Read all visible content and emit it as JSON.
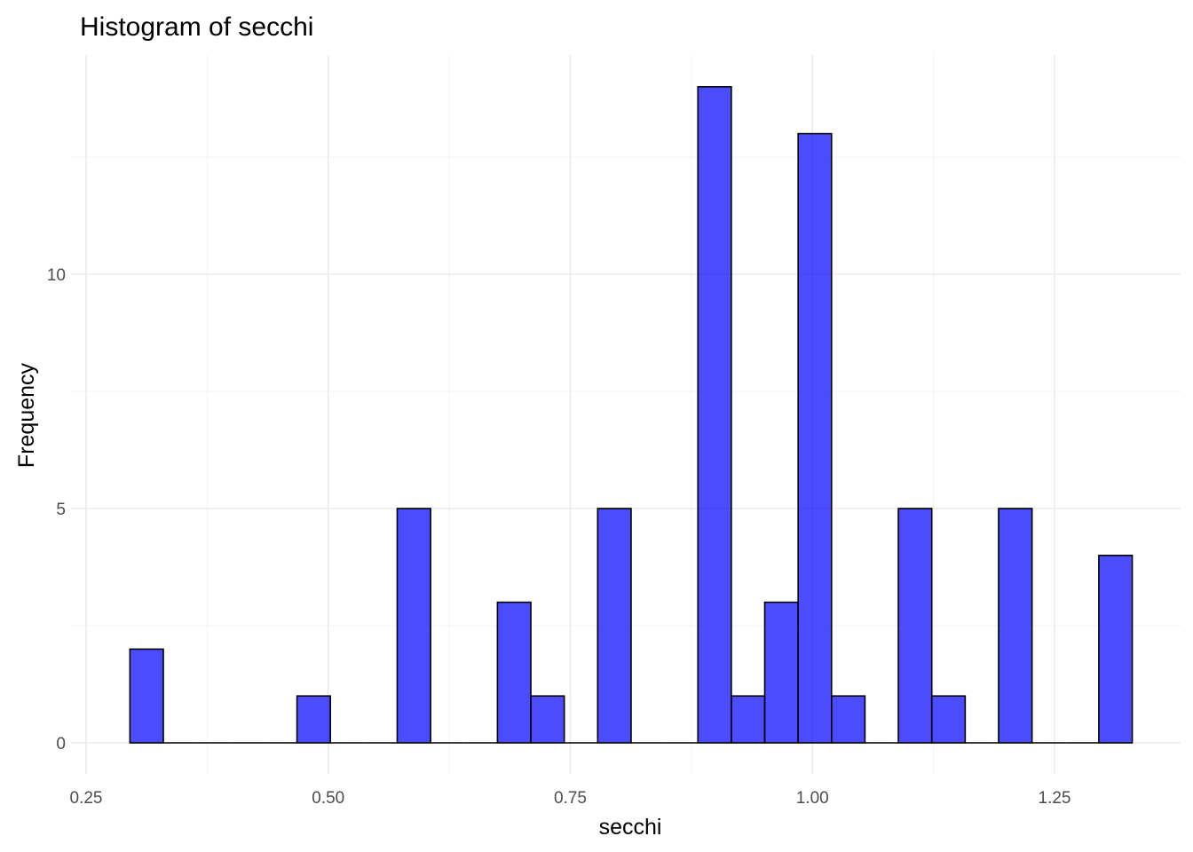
{
  "chart_data": {
    "type": "bar",
    "title": "Histogram of secchi",
    "xlabel": "secchi",
    "ylabel": "Frequency",
    "bar_color": "#0000FF",
    "bar_opacity": 0.7,
    "bar_outline": "#000000",
    "grid": true,
    "xlim": [
      0.25,
      1.35
    ],
    "ylim": [
      0,
      14
    ],
    "x_ticks": [
      0.25,
      0.5,
      0.75,
      1.0,
      1.25
    ],
    "x_tick_labels": [
      "0.25",
      "0.50",
      "0.75",
      "1.00",
      "1.25"
    ],
    "y_ticks": [
      0,
      5,
      10
    ],
    "y_tick_labels": [
      "0",
      "5",
      "10"
    ],
    "bin_width": 0.0345,
    "bin_centers": [
      0.3125,
      0.347,
      0.3815,
      0.416,
      0.4505,
      0.485,
      0.5195,
      0.554,
      0.5885,
      0.623,
      0.6575,
      0.692,
      0.7265,
      0.761,
      0.7955,
      0.83,
      0.8645,
      0.899,
      0.9335,
      0.968,
      1.0025,
      1.037,
      1.0715,
      1.106,
      1.1405,
      1.175,
      1.2095,
      1.244,
      1.2785,
      1.313
    ],
    "counts": [
      2,
      0,
      0,
      0,
      0,
      1,
      0,
      0,
      5,
      0,
      0,
      3,
      1,
      0,
      5,
      0,
      0,
      14,
      1,
      3,
      13,
      1,
      0,
      5,
      1,
      0,
      5,
      0,
      0,
      4
    ]
  }
}
